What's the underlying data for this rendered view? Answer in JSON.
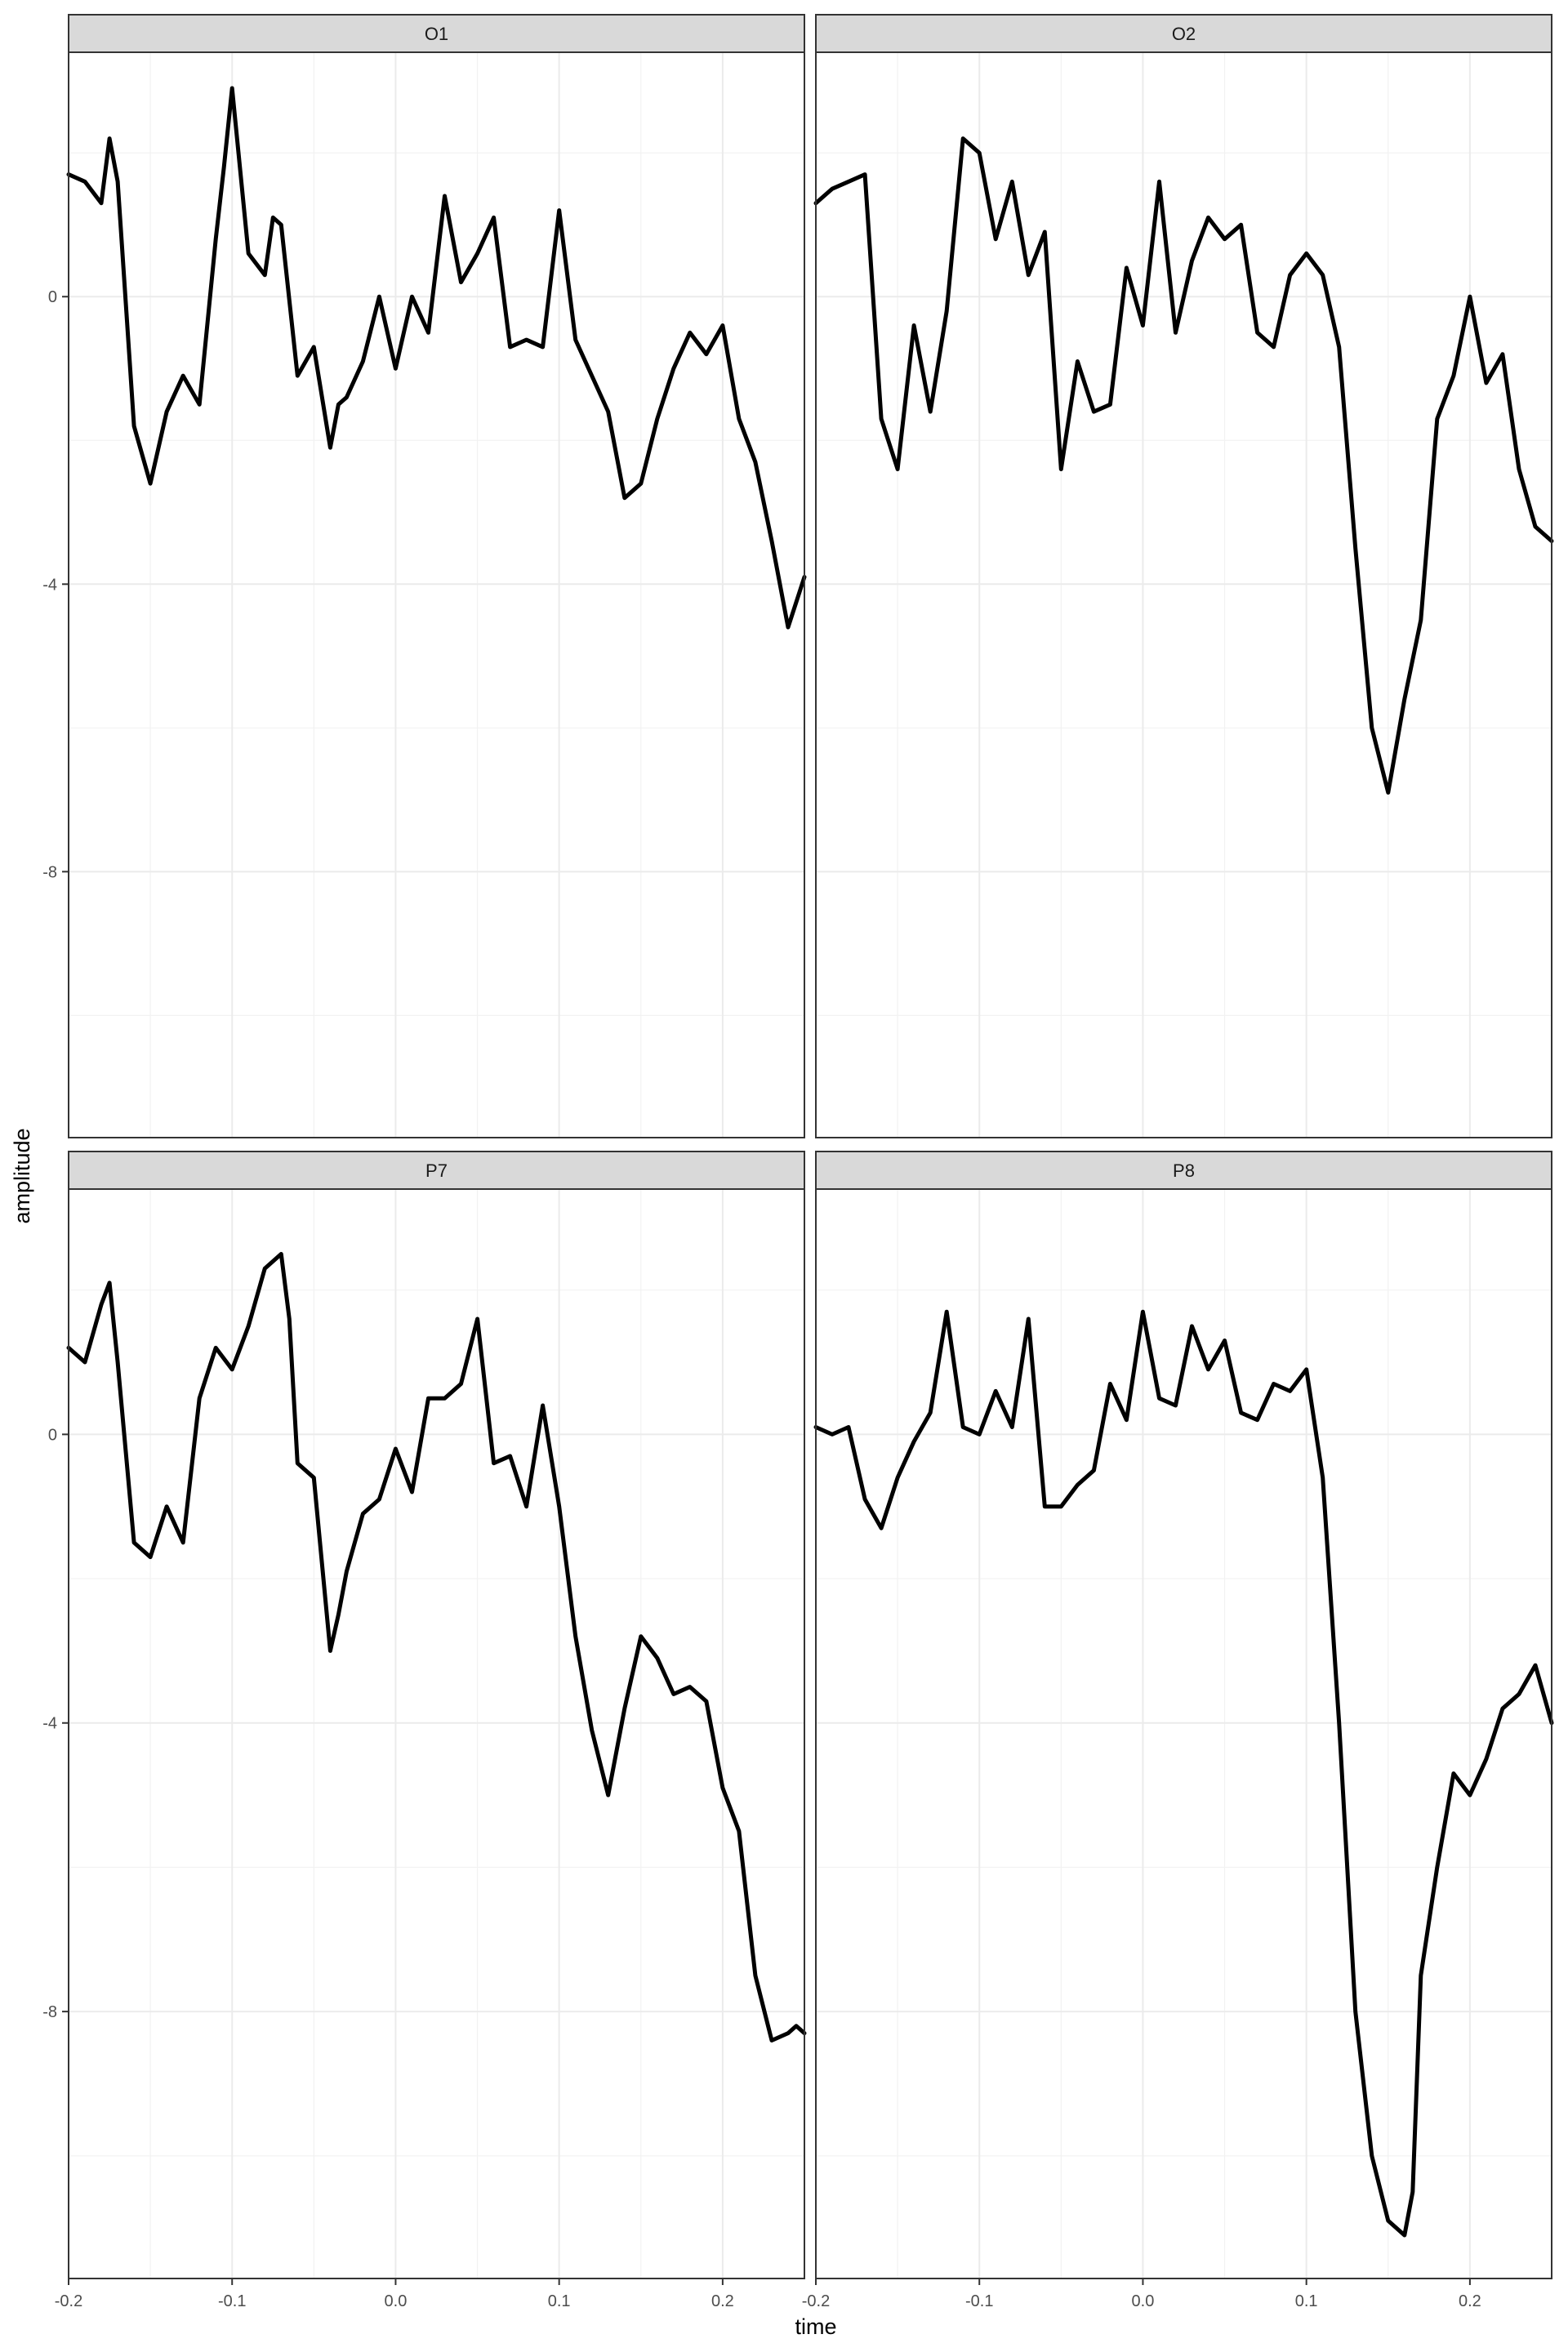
{
  "chart_data": {
    "type": "line",
    "layout": "facet-grid 2x2",
    "xlabel": "time",
    "ylabel": "amplitude",
    "xlim": [
      -0.2,
      0.25
    ],
    "ylim": [
      -11.7,
      3.4
    ],
    "x_ticks": [
      -0.2,
      -0.1,
      0.0,
      0.1,
      0.2
    ],
    "x_tick_labels": [
      "-0.2",
      "-0.1",
      "0.0",
      "0.1",
      "0.2"
    ],
    "y_ticks": [
      0,
      -4,
      -8
    ],
    "y_tick_labels": [
      "0",
      "-4",
      "-8"
    ],
    "grid": true,
    "theme": "bw",
    "line_color": "#000000",
    "strip_fill": "#d9d9d9",
    "panels": [
      {
        "name": "O1",
        "x": [
          -0.2,
          -0.19,
          -0.18,
          -0.175,
          -0.17,
          -0.16,
          -0.15,
          -0.14,
          -0.13,
          -0.12,
          -0.11,
          -0.105,
          -0.1,
          -0.09,
          -0.08,
          -0.075,
          -0.07,
          -0.06,
          -0.05,
          -0.04,
          -0.035,
          -0.03,
          -0.02,
          -0.01,
          0.0,
          0.01,
          0.02,
          0.03,
          0.04,
          0.05,
          0.06,
          0.07,
          0.08,
          0.09,
          0.1,
          0.11,
          0.12,
          0.13,
          0.14,
          0.15,
          0.16,
          0.17,
          0.18,
          0.19,
          0.2,
          0.21,
          0.22,
          0.23,
          0.24,
          0.25
        ],
        "y": [
          1.7,
          1.6,
          1.3,
          2.2,
          1.6,
          -1.8,
          -2.6,
          -1.6,
          -1.1,
          -1.5,
          0.8,
          1.8,
          2.9,
          0.6,
          0.3,
          1.1,
          1.0,
          -1.1,
          -0.7,
          -2.1,
          -1.5,
          -1.4,
          -0.9,
          0.0,
          -1.0,
          0.0,
          -0.5,
          1.4,
          0.2,
          0.6,
          1.1,
          -0.7,
          -0.6,
          -0.7,
          1.2,
          -0.6,
          -1.1,
          -1.6,
          -2.8,
          -2.6,
          -1.7,
          -1.0,
          -0.5,
          -0.8,
          -0.4,
          -1.7,
          -2.3,
          -3.4,
          -4.6,
          -3.9
        ]
      },
      {
        "name": "O2",
        "x": [
          -0.2,
          -0.19,
          -0.18,
          -0.17,
          -0.16,
          -0.15,
          -0.14,
          -0.13,
          -0.12,
          -0.11,
          -0.1,
          -0.09,
          -0.08,
          -0.07,
          -0.06,
          -0.05,
          -0.04,
          -0.03,
          -0.02,
          -0.01,
          0.0,
          0.01,
          0.02,
          0.03,
          0.04,
          0.05,
          0.06,
          0.07,
          0.08,
          0.09,
          0.1,
          0.11,
          0.12,
          0.13,
          0.14,
          0.15,
          0.16,
          0.17,
          0.18,
          0.19,
          0.2,
          0.21,
          0.22,
          0.23,
          0.24,
          0.25
        ],
        "y": [
          1.3,
          1.5,
          1.6,
          1.7,
          -1.7,
          -2.4,
          -0.4,
          -1.6,
          -0.2,
          2.2,
          2.0,
          0.8,
          1.6,
          0.3,
          0.9,
          -2.4,
          -0.9,
          -1.6,
          -1.5,
          0.4,
          -0.4,
          1.6,
          -0.5,
          0.5,
          1.1,
          0.8,
          1.0,
          -0.5,
          -0.7,
          0.3,
          0.6,
          0.3,
          -0.7,
          -3.5,
          -6.0,
          -6.9,
          -5.6,
          -4.5,
          -1.7,
          -1.1,
          0.0,
          -1.2,
          -0.8,
          -2.4,
          -3.2,
          -3.4
        ]
      },
      {
        "name": "P7",
        "x": [
          -0.2,
          -0.19,
          -0.18,
          -0.175,
          -0.17,
          -0.16,
          -0.15,
          -0.14,
          -0.13,
          -0.12,
          -0.11,
          -0.1,
          -0.09,
          -0.08,
          -0.07,
          -0.065,
          -0.06,
          -0.05,
          -0.04,
          -0.035,
          -0.03,
          -0.02,
          -0.01,
          0.0,
          0.01,
          0.02,
          0.03,
          0.04,
          0.05,
          0.06,
          0.07,
          0.08,
          0.09,
          0.1,
          0.11,
          0.12,
          0.13,
          0.14,
          0.15,
          0.16,
          0.17,
          0.18,
          0.19,
          0.2,
          0.21,
          0.22,
          0.23,
          0.24,
          0.245,
          0.25
        ],
        "y": [
          1.2,
          1.0,
          1.8,
          2.1,
          1.0,
          -1.5,
          -1.7,
          -1.0,
          -1.5,
          0.5,
          1.2,
          0.9,
          1.5,
          2.3,
          2.5,
          1.6,
          -0.4,
          -0.6,
          -3.0,
          -2.5,
          -1.9,
          -1.1,
          -0.9,
          -0.2,
          -0.8,
          0.5,
          0.5,
          0.7,
          1.6,
          -0.4,
          -0.3,
          -1.0,
          0.4,
          -1.0,
          -2.8,
          -4.1,
          -5.0,
          -3.8,
          -2.8,
          -3.1,
          -3.6,
          -3.5,
          -3.7,
          -4.9,
          -5.5,
          -7.5,
          -8.4,
          -8.3,
          -8.2,
          -8.3
        ]
      },
      {
        "name": "P8",
        "x": [
          -0.2,
          -0.19,
          -0.18,
          -0.17,
          -0.16,
          -0.15,
          -0.14,
          -0.13,
          -0.12,
          -0.11,
          -0.1,
          -0.09,
          -0.08,
          -0.07,
          -0.06,
          -0.05,
          -0.04,
          -0.03,
          -0.02,
          -0.01,
          0.0,
          0.01,
          0.02,
          0.03,
          0.04,
          0.05,
          0.06,
          0.07,
          0.08,
          0.09,
          0.1,
          0.11,
          0.12,
          0.13,
          0.14,
          0.15,
          0.16,
          0.165,
          0.17,
          0.18,
          0.19,
          0.2,
          0.21,
          0.22,
          0.23,
          0.24,
          0.25
        ],
        "y": [
          0.1,
          0.0,
          0.1,
          -0.9,
          -1.3,
          -0.6,
          -0.1,
          0.3,
          1.7,
          0.1,
          0.0,
          0.6,
          0.1,
          1.6,
          -1.0,
          -1.0,
          -0.7,
          -0.5,
          0.7,
          0.2,
          1.7,
          0.5,
          0.4,
          1.5,
          0.9,
          1.3,
          0.3,
          0.2,
          0.7,
          0.6,
          0.9,
          -0.6,
          -4.0,
          -8.0,
          -10.0,
          -10.9,
          -11.1,
          -10.5,
          -7.5,
          -6.0,
          -4.7,
          -5.0,
          -4.5,
          -3.8,
          -3.6,
          -3.2,
          -4.0
        ]
      }
    ]
  }
}
